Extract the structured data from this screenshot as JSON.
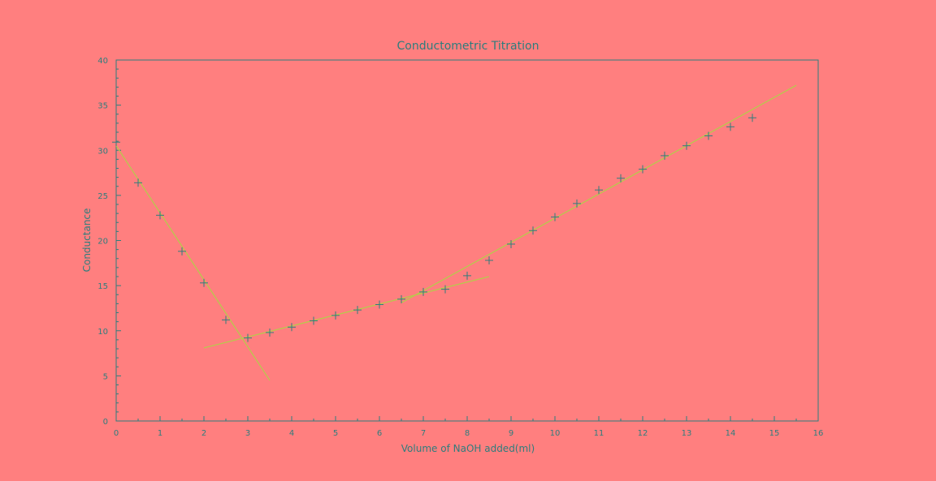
{
  "chart_data": {
    "type": "scatter",
    "title": "Conductometric Titration",
    "xlabel": "Volume of NaOH added(ml)",
    "ylabel": "Conductance",
    "xlim": [
      0,
      16
    ],
    "ylim": [
      0,
      40
    ],
    "x_ticks": [
      "0",
      "1",
      "2",
      "3",
      "4",
      "5",
      "6",
      "7",
      "8",
      "9",
      "10",
      "11",
      "12",
      "13",
      "14",
      "15",
      "16"
    ],
    "y_ticks": [
      "0",
      "5",
      "10",
      "15",
      "20",
      "25",
      "30",
      "35",
      "40"
    ],
    "grid": false,
    "legend": "none",
    "colors": {
      "background": "#ff7f7f",
      "axis": "#2e7d7d",
      "marker": "#2e7d7d",
      "fit_line": "#b7c94d"
    },
    "series": [
      {
        "type": "scatter",
        "marker": "+",
        "points": [
          [
            0,
            30.9
          ],
          [
            0.5,
            26.4
          ],
          [
            1,
            22.8
          ],
          [
            1.5,
            18.8
          ],
          [
            2,
            15.3
          ],
          [
            2.5,
            11.2
          ],
          [
            3,
            9.2
          ],
          [
            3.5,
            9.8
          ],
          [
            4,
            10.4
          ],
          [
            4.5,
            11.1
          ],
          [
            5,
            11.7
          ],
          [
            5.5,
            12.3
          ],
          [
            6,
            12.9
          ],
          [
            6.5,
            13.5
          ],
          [
            7,
            14.3
          ],
          [
            7.5,
            14.6
          ],
          [
            8,
            16.1
          ],
          [
            8.5,
            17.8
          ],
          [
            9,
            19.6
          ],
          [
            9.5,
            21.1
          ],
          [
            10,
            22.6
          ],
          [
            10.5,
            24.1
          ],
          [
            11,
            25.6
          ],
          [
            11.5,
            26.9
          ],
          [
            12,
            27.9
          ],
          [
            12.5,
            29.4
          ],
          [
            13,
            30.5
          ],
          [
            13.5,
            31.6
          ],
          [
            14,
            32.6
          ],
          [
            14.5,
            33.6
          ]
        ]
      },
      {
        "type": "line",
        "points": [
          [
            0,
            30.5
          ],
          [
            3.5,
            4.5
          ]
        ]
      },
      {
        "type": "line",
        "points": [
          [
            2,
            8.1
          ],
          [
            8.5,
            16.0
          ]
        ]
      },
      {
        "type": "line",
        "points": [
          [
            6.5,
            13.1
          ],
          [
            15.5,
            37.2
          ]
        ]
      }
    ]
  }
}
